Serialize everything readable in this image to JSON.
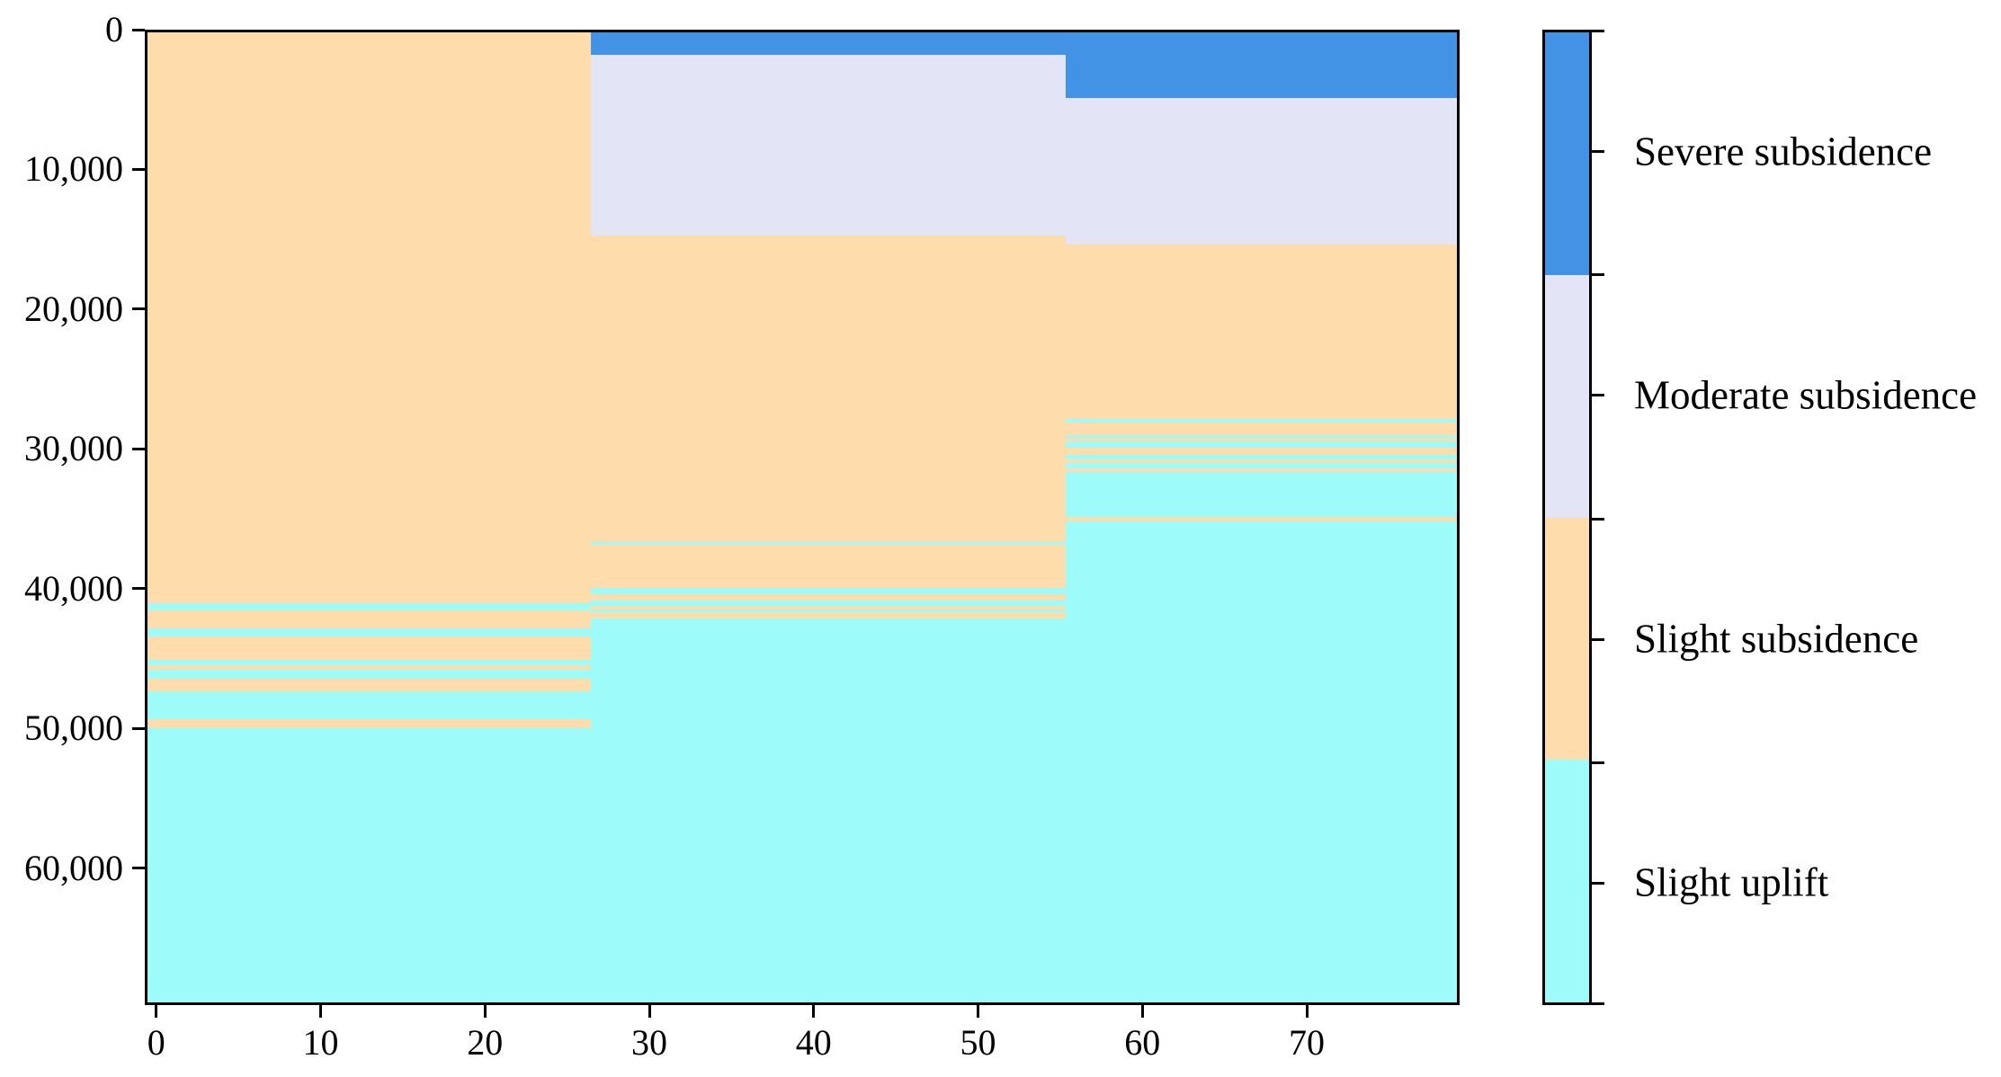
{
  "chart_data": {
    "type": "heatmap",
    "title": "",
    "xlabel": "",
    "ylabel": "",
    "xlim": [
      -0.7,
      79.3
    ],
    "ylim": [
      0,
      69800
    ],
    "y_inverted": true,
    "grid": false,
    "x_ticks": [
      {
        "value": 0,
        "label": "0"
      },
      {
        "value": 10,
        "label": "10"
      },
      {
        "value": 20,
        "label": "20"
      },
      {
        "value": 30,
        "label": "30"
      },
      {
        "value": 40,
        "label": "40"
      },
      {
        "value": 50,
        "label": "50"
      },
      {
        "value": 60,
        "label": "60"
      },
      {
        "value": 70,
        "label": "70"
      }
    ],
    "y_ticks": [
      {
        "value": 0,
        "label": "0"
      },
      {
        "value": 10000,
        "label": "10,000"
      },
      {
        "value": 20000,
        "label": "20,000"
      },
      {
        "value": 30000,
        "label": "30,000"
      },
      {
        "value": 40000,
        "label": "40,000"
      },
      {
        "value": 50000,
        "label": "50,000"
      },
      {
        "value": 60000,
        "label": "60,000"
      }
    ],
    "categories": [
      {
        "name": "Severe subsidence",
        "color": "#4292e6"
      },
      {
        "name": "Moderate subsidence",
        "color": "#e3e5f7"
      },
      {
        "name": "Slight subsidence",
        "color": "#fedcab"
      },
      {
        "name": "Slight uplift",
        "color": "#9dfcfa"
      }
    ],
    "columns": [
      {
        "x_range": [
          -0.7,
          26.4
        ],
        "segments": [
          [
            2,
            0,
            41050
          ],
          [
            3,
            41050,
            41600
          ],
          [
            2,
            41600,
            42900
          ],
          [
            3,
            42900,
            43450
          ],
          [
            2,
            43450,
            45150
          ],
          [
            3,
            45150,
            45550
          ],
          [
            2,
            45550,
            45850
          ],
          [
            3,
            45850,
            46500
          ],
          [
            2,
            46500,
            47400
          ],
          [
            3,
            47400,
            49400
          ],
          [
            2,
            49400,
            50050
          ],
          [
            3,
            50050,
            69800
          ]
        ]
      },
      {
        "x_range": [
          26.4,
          55.4
        ],
        "segments": [
          [
            0,
            0,
            1600
          ],
          [
            1,
            1600,
            14600
          ],
          [
            2,
            14600,
            36700
          ],
          [
            3,
            36700,
            36900
          ],
          [
            2,
            36900,
            40000
          ],
          [
            3,
            40000,
            40400
          ],
          [
            2,
            40400,
            40900
          ],
          [
            3,
            40900,
            41300
          ],
          [
            2,
            41300,
            41500
          ],
          [
            3,
            41500,
            41700
          ],
          [
            2,
            41700,
            42200
          ],
          [
            3,
            42200,
            69800
          ]
        ]
      },
      {
        "x_range": [
          55.4,
          79.3
        ],
        "segments": [
          [
            0,
            0,
            4700
          ],
          [
            1,
            4700,
            15250
          ],
          [
            2,
            15250,
            27800
          ],
          [
            3,
            27800,
            28100
          ],
          [
            2,
            28100,
            28950
          ],
          [
            3,
            28950,
            29150
          ],
          [
            2,
            29150,
            29450
          ],
          [
            3,
            29450,
            29900
          ],
          [
            2,
            29900,
            30400
          ],
          [
            3,
            30400,
            30750
          ],
          [
            2,
            30750,
            31000
          ],
          [
            3,
            31000,
            31400
          ],
          [
            2,
            31400,
            31650
          ],
          [
            3,
            31650,
            34850
          ],
          [
            2,
            34850,
            35200
          ],
          [
            3,
            35200,
            69800
          ]
        ]
      }
    ],
    "colorbar": {
      "orientation": "vertical",
      "position": "right",
      "segment_order_top_to_bottom": [
        0,
        1,
        2,
        3
      ],
      "labels": [
        "Severe subsidence",
        "Moderate subsidence",
        "Slight subsidence",
        "Slight uplift"
      ]
    },
    "legend_position": "right",
    "axis_color": "#000000"
  }
}
